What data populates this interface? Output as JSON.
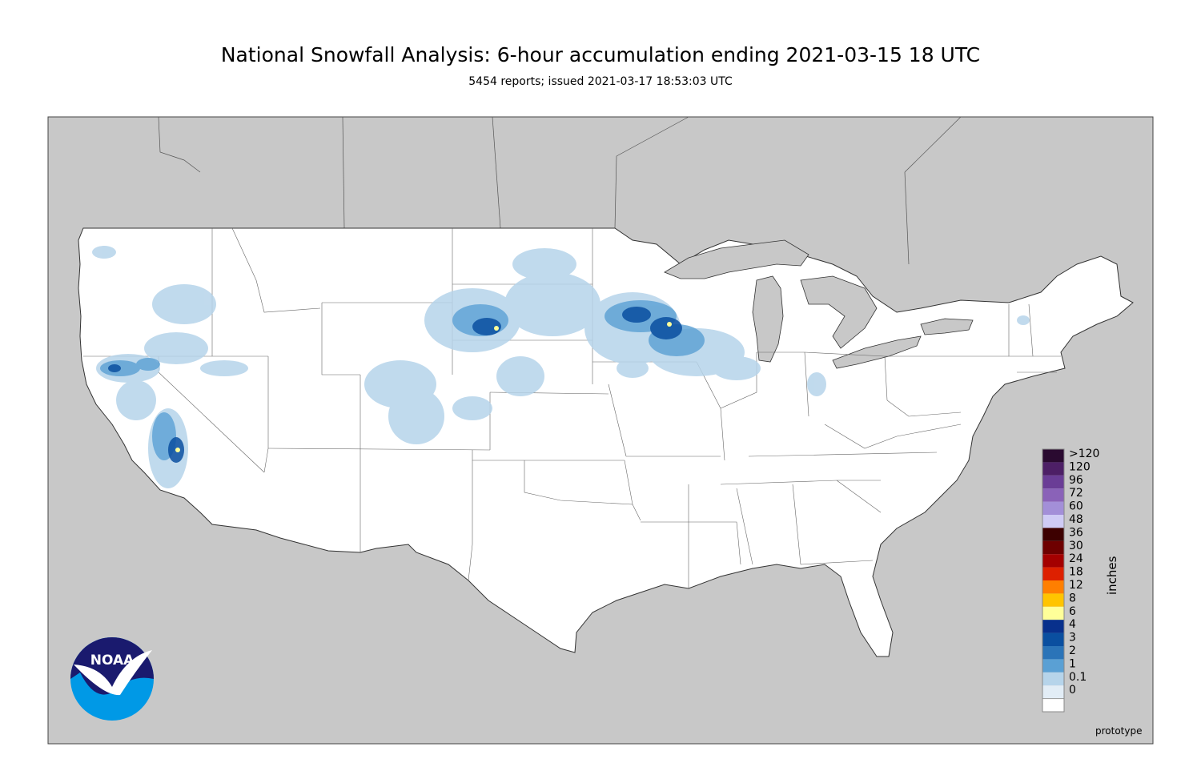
{
  "title": "National Snowfall Analysis: 6-hour accumulation ending 2021-03-15 18 UTC",
  "subtitle": "5454 reports; issued 2021-03-17 18:53:03 UTC",
  "legend": {
    "unit": "inches",
    "items": [
      {
        "label": ">120",
        "color": "#2a0a30"
      },
      {
        "label": "120",
        "color": "#4d1f66"
      },
      {
        "label": "96",
        "color": "#6a3d96"
      },
      {
        "label": "72",
        "color": "#8a62b8"
      },
      {
        "label": "60",
        "color": "#a38fd8"
      },
      {
        "label": "48",
        "color": "#cfcbf5"
      },
      {
        "label": "36",
        "color": "#3d0000"
      },
      {
        "label": "30",
        "color": "#6e0000"
      },
      {
        "label": "24",
        "color": "#a40000"
      },
      {
        "label": "18",
        "color": "#dd2000"
      },
      {
        "label": "12",
        "color": "#ff7f00"
      },
      {
        "label": "8",
        "color": "#ffc400"
      },
      {
        "label": "6",
        "color": "#ffff99"
      },
      {
        "label": "4",
        "color": "#08308c"
      },
      {
        "label": "3",
        "color": "#0a4fa0"
      },
      {
        "label": "2",
        "color": "#2b74b8"
      },
      {
        "label": "1",
        "color": "#5aa0d4"
      },
      {
        "label": "0.1",
        "color": "#b6d4ea"
      },
      {
        "label": "0",
        "color": "#e2edf6"
      }
    ]
  },
  "watermark": "prototype",
  "logo": {
    "text": "NOAA"
  },
  "colors": {
    "background": "#c8c8c8",
    "land_conus": "#ffffff",
    "lakes": "#c8c8c8",
    "border": "#555555"
  }
}
